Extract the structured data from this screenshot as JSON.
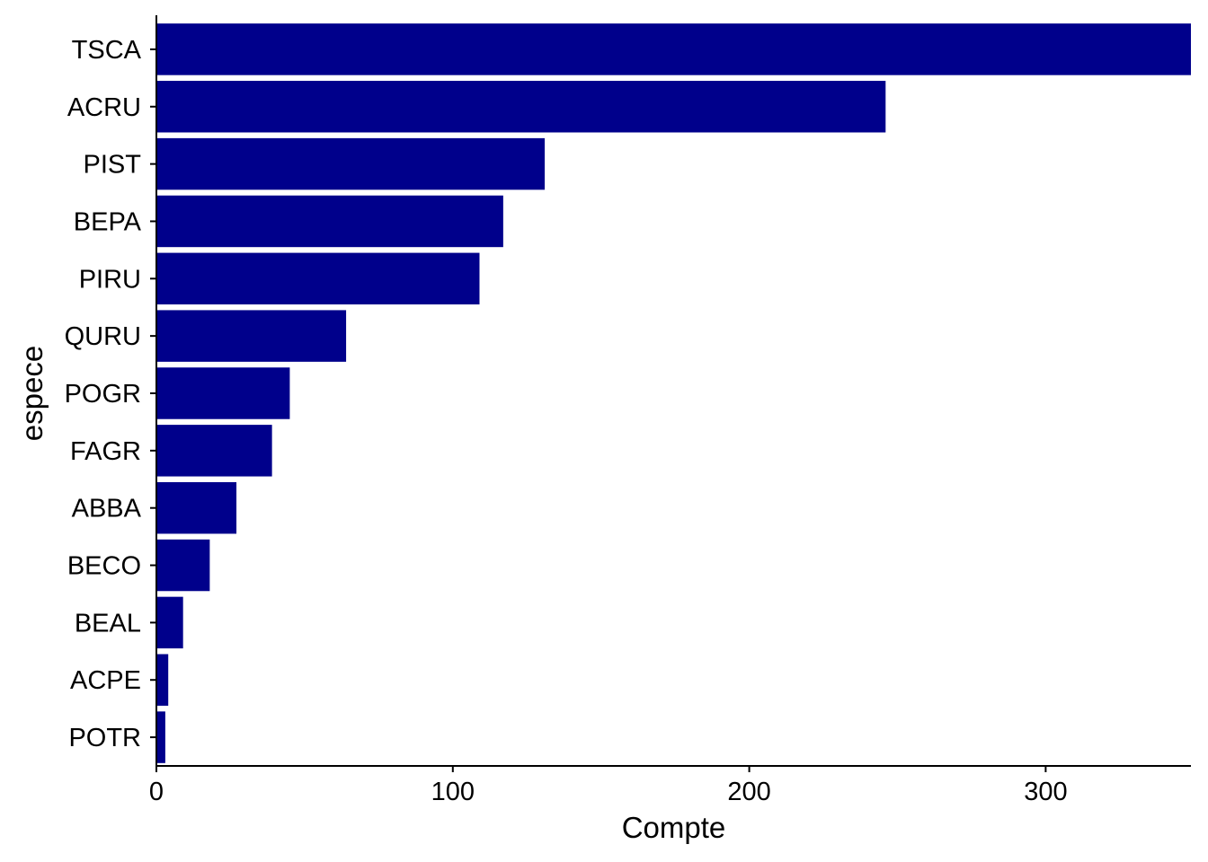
{
  "chart_data": {
    "type": "bar",
    "orientation": "horizontal",
    "categories": [
      "TSCA",
      "ACRU",
      "PIST",
      "BEPA",
      "PIRU",
      "QURU",
      "POGR",
      "FAGR",
      "ABBA",
      "BECO",
      "BEAL",
      "ACPE",
      "POTR"
    ],
    "values": [
      349,
      246,
      131,
      117,
      109,
      64,
      45,
      39,
      27,
      18,
      9,
      4,
      3
    ],
    "xlabel": "Compte",
    "ylabel": "espece",
    "xlim": [
      0,
      349
    ],
    "xticks": [
      0,
      100,
      200,
      300
    ],
    "grid": false,
    "bar_color": "#00008B"
  }
}
